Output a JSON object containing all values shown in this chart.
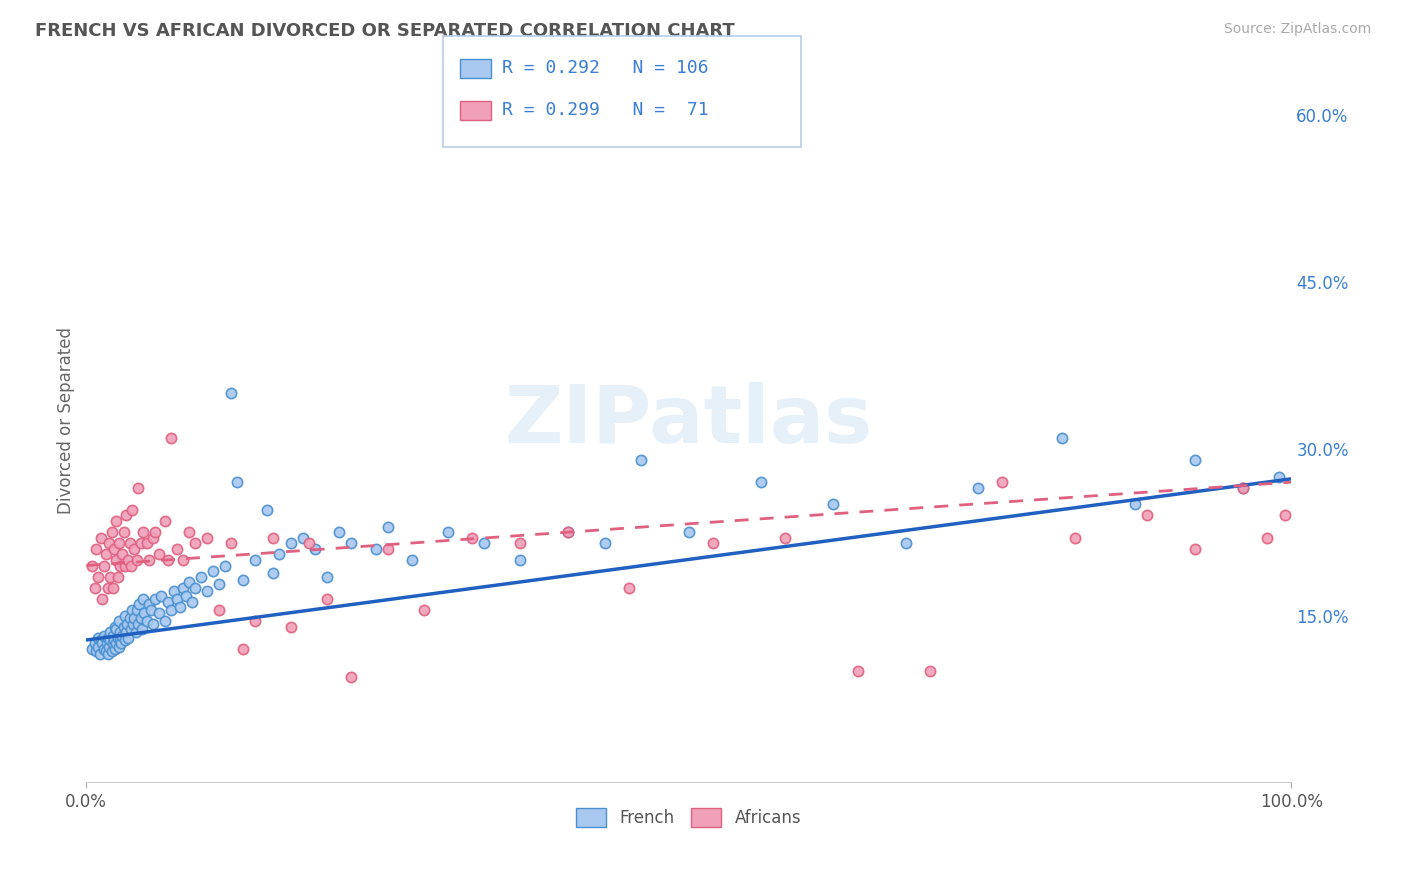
{
  "title": "FRENCH VS AFRICAN DIVORCED OR SEPARATED CORRELATION CHART",
  "source_text": "Source: ZipAtlas.com",
  "ylabel": "Divorced or Separated",
  "watermark": "ZIPatlas",
  "xlim": [
    0,
    1.0
  ],
  "ylim": [
    0,
    0.65
  ],
  "yticks_right": [
    0.15,
    0.3,
    0.45,
    0.6
  ],
  "yticklabels_right": [
    "15.0%",
    "30.0%",
    "45.0%",
    "60.0%"
  ],
  "french_color": "#a8c8f0",
  "african_color": "#f0a0b8",
  "french_edge_color": "#4a90d0",
  "african_edge_color": "#e06080",
  "french_line_color": "#2060c0",
  "african_line_color": "#e06080",
  "legend_text_color": "#3a7fd4",
  "background_color": "#ffffff",
  "grid_color": "#c8d8e8",
  "french_R": 0.292,
  "french_N": 106,
  "african_R": 0.299,
  "african_N": 71,
  "french_intercept": 0.128,
  "french_slope": 0.145,
  "african_intercept": 0.195,
  "african_slope": 0.075,
  "french_x": [
    0.005,
    0.007,
    0.008,
    0.01,
    0.01,
    0.011,
    0.012,
    0.013,
    0.015,
    0.015,
    0.016,
    0.017,
    0.018,
    0.018,
    0.019,
    0.02,
    0.02,
    0.021,
    0.022,
    0.022,
    0.023,
    0.024,
    0.024,
    0.025,
    0.025,
    0.026,
    0.027,
    0.027,
    0.028,
    0.028,
    0.029,
    0.03,
    0.031,
    0.032,
    0.032,
    0.033,
    0.034,
    0.035,
    0.036,
    0.037,
    0.038,
    0.039,
    0.04,
    0.041,
    0.042,
    0.043,
    0.044,
    0.045,
    0.046,
    0.047,
    0.048,
    0.05,
    0.052,
    0.054,
    0.055,
    0.057,
    0.06,
    0.062,
    0.065,
    0.068,
    0.07,
    0.073,
    0.075,
    0.078,
    0.08,
    0.083,
    0.085,
    0.088,
    0.09,
    0.095,
    0.1,
    0.105,
    0.11,
    0.115,
    0.12,
    0.125,
    0.13,
    0.14,
    0.15,
    0.155,
    0.16,
    0.17,
    0.18,
    0.19,
    0.2,
    0.21,
    0.22,
    0.24,
    0.25,
    0.27,
    0.3,
    0.33,
    0.36,
    0.4,
    0.43,
    0.46,
    0.5,
    0.56,
    0.62,
    0.68,
    0.74,
    0.81,
    0.87,
    0.92,
    0.96,
    0.99
  ],
  "french_y": [
    0.12,
    0.125,
    0.118,
    0.122,
    0.13,
    0.115,
    0.128,
    0.125,
    0.132,
    0.12,
    0.118,
    0.125,
    0.13,
    0.115,
    0.122,
    0.128,
    0.135,
    0.118,
    0.125,
    0.132,
    0.128,
    0.12,
    0.14,
    0.125,
    0.138,
    0.13,
    0.122,
    0.145,
    0.128,
    0.135,
    0.125,
    0.132,
    0.14,
    0.128,
    0.15,
    0.135,
    0.142,
    0.13,
    0.148,
    0.138,
    0.155,
    0.142,
    0.148,
    0.135,
    0.155,
    0.142,
    0.16,
    0.148,
    0.138,
    0.165,
    0.152,
    0.145,
    0.16,
    0.155,
    0.142,
    0.165,
    0.152,
    0.168,
    0.145,
    0.162,
    0.155,
    0.172,
    0.165,
    0.158,
    0.175,
    0.168,
    0.18,
    0.162,
    0.175,
    0.185,
    0.172,
    0.19,
    0.178,
    0.195,
    0.35,
    0.27,
    0.182,
    0.2,
    0.245,
    0.188,
    0.205,
    0.215,
    0.22,
    0.21,
    0.185,
    0.225,
    0.215,
    0.21,
    0.23,
    0.2,
    0.225,
    0.215,
    0.2,
    0.225,
    0.215,
    0.29,
    0.225,
    0.27,
    0.25,
    0.215,
    0.265,
    0.31,
    0.25,
    0.29,
    0.265,
    0.275
  ],
  "african_x": [
    0.005,
    0.007,
    0.008,
    0.01,
    0.012,
    0.013,
    0.015,
    0.016,
    0.018,
    0.019,
    0.02,
    0.021,
    0.022,
    0.023,
    0.025,
    0.025,
    0.026,
    0.027,
    0.028,
    0.03,
    0.031,
    0.032,
    0.033,
    0.035,
    0.036,
    0.037,
    0.038,
    0.04,
    0.042,
    0.043,
    0.045,
    0.047,
    0.05,
    0.052,
    0.055,
    0.057,
    0.06,
    0.065,
    0.068,
    0.07,
    0.075,
    0.08,
    0.085,
    0.09,
    0.1,
    0.11,
    0.12,
    0.13,
    0.14,
    0.155,
    0.17,
    0.185,
    0.2,
    0.22,
    0.25,
    0.28,
    0.32,
    0.36,
    0.4,
    0.45,
    0.52,
    0.58,
    0.64,
    0.7,
    0.76,
    0.82,
    0.88,
    0.92,
    0.96,
    0.98,
    0.995
  ],
  "african_y": [
    0.195,
    0.175,
    0.21,
    0.185,
    0.22,
    0.165,
    0.195,
    0.205,
    0.175,
    0.215,
    0.185,
    0.225,
    0.175,
    0.21,
    0.2,
    0.235,
    0.185,
    0.215,
    0.195,
    0.205,
    0.225,
    0.195,
    0.24,
    0.2,
    0.215,
    0.195,
    0.245,
    0.21,
    0.2,
    0.265,
    0.215,
    0.225,
    0.215,
    0.2,
    0.22,
    0.225,
    0.205,
    0.235,
    0.2,
    0.31,
    0.21,
    0.2,
    0.225,
    0.215,
    0.22,
    0.155,
    0.215,
    0.12,
    0.145,
    0.22,
    0.14,
    0.215,
    0.165,
    0.095,
    0.21,
    0.155,
    0.22,
    0.215,
    0.225,
    0.175,
    0.215,
    0.22,
    0.1,
    0.1,
    0.27,
    0.22,
    0.24,
    0.21,
    0.265,
    0.22,
    0.24
  ]
}
